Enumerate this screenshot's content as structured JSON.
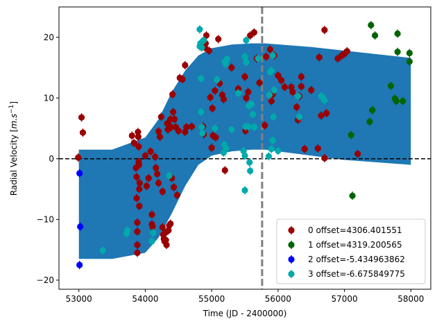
{
  "chart_data": {
    "type": "scatter",
    "xlabel": "Time (JD - 2400000)",
    "ylabel_text": "Radial Velocity [",
    "ylabel_unit": "m.s",
    "ylabel_exp": "−1",
    "ylabel_close": "]",
    "xlim": [
      52700,
      58300
    ],
    "ylim": [
      -21.5,
      25
    ],
    "x_ticks": [
      53000,
      54000,
      55000,
      56000,
      57000,
      58000
    ],
    "y_ticks": [
      -20,
      -10,
      0,
      10,
      20
    ],
    "grid": false,
    "legend_position": "lower right",
    "zero_line": {
      "y": 0,
      "style": "dashed",
      "color": "#000000"
    },
    "vertical_line": {
      "x": 55760,
      "style": "dashed",
      "color": "#808080"
    },
    "model_band": {
      "color": "#1f77b4",
      "x": [
        53000,
        53500,
        54000,
        54200,
        54400,
        54600,
        54800,
        55000,
        55300,
        55600,
        55800,
        56500,
        57000,
        57500,
        58000
      ],
      "upper": [
        1.5,
        1.5,
        3.5,
        6.5,
        11,
        14.5,
        17,
        18.2,
        18.8,
        19,
        19,
        18.4,
        17.8,
        17.2,
        16.6
      ],
      "lower": [
        -16.5,
        -16.5,
        -15.5,
        -13,
        -9,
        -4.5,
        -1,
        0.5,
        1.2,
        1.5,
        1.5,
        0.5,
        -0.2,
        -0.6,
        -1.0
      ]
    },
    "series": [
      {
        "name": "0 offset=4306.401551",
        "color": "#990000",
        "points": [
          [
            52990,
            0.2
          ],
          [
            53040,
            6.8
          ],
          [
            53060,
            4.3
          ],
          [
            53800,
            3.8
          ],
          [
            53830,
            2.6
          ],
          [
            53860,
            -1.5
          ],
          [
            53870,
            -3
          ],
          [
            53870,
            -6.5
          ],
          [
            53880,
            -10.5
          ],
          [
            53880,
            -12
          ],
          [
            53880,
            -15.5
          ],
          [
            53880,
            -14.2
          ],
          [
            53890,
            4.4
          ],
          [
            53895,
            3.6
          ],
          [
            53900,
            -0.5
          ],
          [
            53900,
            2
          ],
          [
            53905,
            -1
          ],
          [
            53910,
            -5
          ],
          [
            53910,
            -7.8
          ],
          [
            53915,
            -4
          ],
          [
            54000,
            0.5
          ],
          [
            54020,
            -4.5
          ],
          [
            54050,
            -3.2
          ],
          [
            54080,
            1.2
          ],
          [
            54100,
            -9.2
          ],
          [
            54100,
            -10.8
          ],
          [
            54110,
            -11.2
          ],
          [
            54150,
            0.3
          ],
          [
            54160,
            -1.5
          ],
          [
            54180,
            -2.5
          ],
          [
            54200,
            -4
          ],
          [
            54200,
            4.5
          ],
          [
            54220,
            3.6
          ],
          [
            54240,
            6.9
          ],
          [
            54260,
            -5.4
          ],
          [
            54260,
            -11.3
          ],
          [
            54270,
            -12.5
          ],
          [
            54280,
            -13.2
          ],
          [
            54290,
            -13.6
          ],
          [
            54300,
            -12.2
          ],
          [
            54310,
            -13.4
          ],
          [
            54320,
            -14.2
          ],
          [
            54330,
            5.8
          ],
          [
            54340,
            4.8
          ],
          [
            54350,
            -11.8
          ],
          [
            54360,
            -11
          ],
          [
            54380,
            -10.7
          ],
          [
            54380,
            6.5
          ],
          [
            54390,
            5.2
          ],
          [
            54400,
            -3.2
          ],
          [
            54410,
            10.6
          ],
          [
            54420,
            7.7
          ],
          [
            54430,
            -4.7
          ],
          [
            54440,
            6.5
          ],
          [
            54460,
            5.2
          ],
          [
            54480,
            -6
          ],
          [
            54500,
            4.6
          ],
          [
            54520,
            13.3
          ],
          [
            54560,
            13.1
          ],
          [
            54600,
            15.4
          ],
          [
            54620,
            5.2
          ],
          [
            54600,
            4.4
          ],
          [
            54700,
            5.3
          ],
          [
            54870,
            5.3
          ],
          [
            54880,
            4
          ],
          [
            54880,
            19.5
          ],
          [
            54890,
            18.5
          ],
          [
            54900,
            18.3
          ],
          [
            54910,
            19
          ],
          [
            54920,
            20.3
          ],
          [
            54960,
            17.8
          ],
          [
            54980,
            10.1
          ],
          [
            55000,
            1.8
          ],
          [
            55010,
            8.3
          ],
          [
            55020,
            3.8
          ],
          [
            55050,
            11.2
          ],
          [
            55060,
            3.5
          ],
          [
            55100,
            19.7
          ],
          [
            55120,
            12.4
          ],
          [
            55160,
            10.5
          ],
          [
            55180,
            9.8
          ],
          [
            55200,
            -1.9
          ],
          [
            55300,
            15
          ],
          [
            55400,
            11.5
          ],
          [
            55500,
            13.5
          ],
          [
            55510,
            4.6
          ],
          [
            55520,
            10
          ],
          [
            55550,
            11
          ],
          [
            55580,
            20.3
          ],
          [
            55640,
            20.8
          ],
          [
            55680,
            16.5
          ],
          [
            55720,
            12.5
          ],
          [
            55800,
            5.5
          ],
          [
            55820,
            16.8
          ],
          [
            55880,
            18
          ],
          [
            55900,
            9.5
          ],
          [
            55920,
            10.6
          ],
          [
            55940,
            17
          ],
          [
            56000,
            13.7
          ],
          [
            56050,
            12.9
          ],
          [
            56100,
            11.8
          ],
          [
            56200,
            11.8
          ],
          [
            56220,
            11
          ],
          [
            56280,
            8.5
          ],
          [
            56300,
            6.4
          ],
          [
            56320,
            10.3
          ],
          [
            56350,
            11.9
          ],
          [
            56400,
            1.6
          ],
          [
            56600,
            1.7
          ],
          [
            56620,
            16.7
          ],
          [
            56650,
            7.1
          ],
          [
            56700,
            21.2
          ],
          [
            56700,
            0.1
          ],
          [
            56730,
            7.5
          ],
          [
            56900,
            16.5
          ],
          [
            56960,
            17
          ],
          [
            57000,
            17.3
          ],
          [
            57040,
            17.7
          ],
          [
            57200,
            0.8
          ],
          [
            56350,
            13.5
          ],
          [
            56500,
            11.3
          ]
        ]
      },
      {
        "name": "1 offset=4319.200565",
        "color": "#006400",
        "points": [
          [
            57100,
            3.9
          ],
          [
            57120,
            -6.1
          ],
          [
            57380,
            6.1
          ],
          [
            57400,
            22
          ],
          [
            57420,
            8
          ],
          [
            57460,
            20.3
          ],
          [
            57700,
            12
          ],
          [
            57760,
            9.9
          ],
          [
            57780,
            9.5
          ],
          [
            57800,
            17.6
          ],
          [
            57800,
            20.6
          ],
          [
            57880,
            9.5
          ],
          [
            57980,
            17.4
          ],
          [
            57980,
            16
          ]
        ]
      },
      {
        "name": "2 offset=-5.434963862",
        "color": "#0000ff",
        "points": [
          [
            53010,
            -2.4
          ],
          [
            53020,
            -11.2
          ],
          [
            53010,
            -17.5
          ]
        ]
      },
      {
        "name": "3 offset=-6.675849775",
        "color": "#00aaaa",
        "points": [
          [
            53360,
            -15.1
          ],
          [
            53720,
            -12.3
          ],
          [
            53730,
            -11.8
          ],
          [
            54100,
            -13.6
          ],
          [
            54120,
            -12.2
          ],
          [
            54360,
            -2.8
          ],
          [
            54820,
            21.3
          ],
          [
            54820,
            18.5
          ],
          [
            54830,
            19
          ],
          [
            54840,
            13.2
          ],
          [
            54840,
            7.7
          ],
          [
            54850,
            5.2
          ],
          [
            54850,
            18.3
          ],
          [
            54860,
            4.2
          ],
          [
            54880,
            19.5
          ],
          [
            55050,
            5
          ],
          [
            55080,
            13
          ],
          [
            55180,
            1
          ],
          [
            55190,
            2.3
          ],
          [
            55200,
            16
          ],
          [
            55210,
            15.6
          ],
          [
            55220,
            1.7
          ],
          [
            55230,
            16.4
          ],
          [
            55300,
            4.8
          ],
          [
            55400,
            10.8
          ],
          [
            55500,
            16.8
          ],
          [
            55520,
            15.9
          ],
          [
            55480,
            1.3
          ],
          [
            55500,
            0.5
          ],
          [
            55500,
            -5.2
          ],
          [
            55510,
            5.3
          ],
          [
            55520,
            19.5
          ],
          [
            55550,
            5.3
          ],
          [
            55560,
            8.7
          ],
          [
            55570,
            -0.6
          ],
          [
            55580,
            -2
          ],
          [
            55600,
            9
          ],
          [
            55620,
            7.3
          ],
          [
            55640,
            5.2
          ],
          [
            55700,
            16.5
          ],
          [
            55860,
            0.4
          ],
          [
            55870,
            10.5
          ],
          [
            55880,
            14.3
          ],
          [
            55900,
            14.5
          ],
          [
            55900,
            1.6
          ],
          [
            55920,
            17
          ],
          [
            55920,
            3
          ],
          [
            55930,
            6.9
          ],
          [
            55940,
            11.3
          ],
          [
            56000,
            1.3
          ],
          [
            56300,
            10.3
          ],
          [
            56320,
            6.9
          ],
          [
            56650,
            10.3
          ],
          [
            56680,
            10
          ],
          [
            56700,
            9.6
          ]
        ]
      }
    ]
  }
}
